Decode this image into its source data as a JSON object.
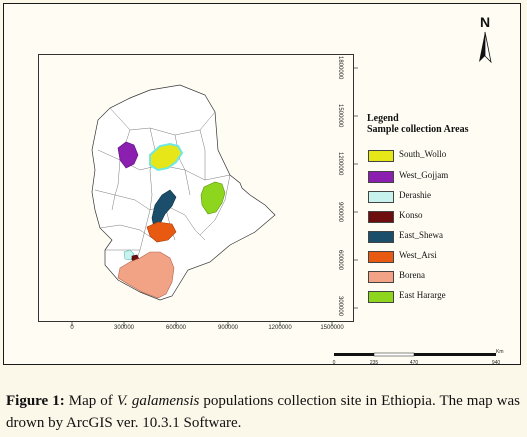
{
  "map": {
    "x_ticks": [
      "0",
      "300000",
      "600000",
      "900000",
      "1200000",
      "1500000"
    ],
    "y_ticks": [
      "1800000",
      "1500000",
      "1200000",
      "900000",
      "600000",
      "300000"
    ],
    "north_label": "N",
    "scale": {
      "ticks": [
        "0",
        "235",
        "470",
        "940"
      ],
      "unit": "Km"
    }
  },
  "legend": {
    "title": "Legend",
    "subtitle": "Sample collection Areas",
    "items": [
      {
        "label": "South_Wollo",
        "color": "#e6e619"
      },
      {
        "label": "West_Gojjam",
        "color": "#8a1fb0"
      },
      {
        "label": "Derashie",
        "color": "#c8f2ee"
      },
      {
        "label": "Konso",
        "color": "#6e0d0d"
      },
      {
        "label": "East_Shewa",
        "color": "#1b4e6b"
      },
      {
        "label": "West_Arsi",
        "color": "#e85a12"
      },
      {
        "label": "Borena",
        "color": "#f2a285"
      },
      {
        "label": "East Hararge",
        "color": "#8ed61e"
      }
    ]
  },
  "caption": {
    "label": "Figure 1:",
    "text_before": " Map of ",
    "species": "V. galamensis",
    "text_after": " populations collection site in Ethiopia. The map was drown by ArcGIS ver. 10.3.1 Software."
  }
}
